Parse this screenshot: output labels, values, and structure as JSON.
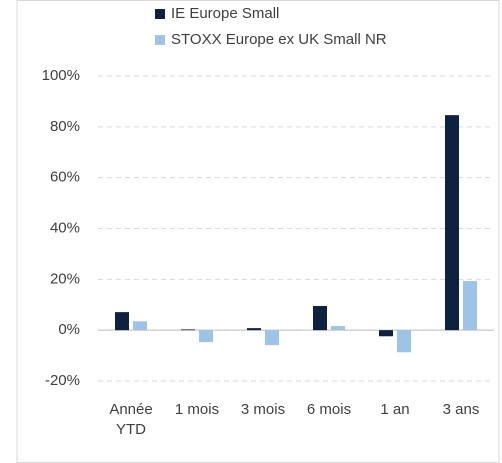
{
  "chart_data": {
    "type": "bar",
    "categories": [
      "Année YTD",
      "1 mois",
      "3 mois",
      "6 mois",
      "1 an",
      "3 ans"
    ],
    "series": [
      {
        "name": "IE Europe Small",
        "color": "#0d2240",
        "values": [
          7.1,
          0.3,
          0.8,
          9.5,
          -2.4,
          84.6
        ]
      },
      {
        "name": "STOXX Europe ex UK Small NR",
        "color": "#9dc3e6",
        "values": [
          3.5,
          -4.7,
          -5.9,
          1.6,
          -8.7,
          19.3
        ]
      }
    ],
    "ylim": [
      -20,
      100
    ],
    "yticks": [
      {
        "value": -20,
        "label": "-20%"
      },
      {
        "value": 0,
        "label": "0%"
      },
      {
        "value": 20,
        "label": "20%"
      },
      {
        "value": 40,
        "label": "40%"
      },
      {
        "value": 60,
        "label": "60%"
      },
      {
        "value": 80,
        "label": "80%"
      },
      {
        "value": 100,
        "label": "100%"
      }
    ],
    "grid": true
  }
}
